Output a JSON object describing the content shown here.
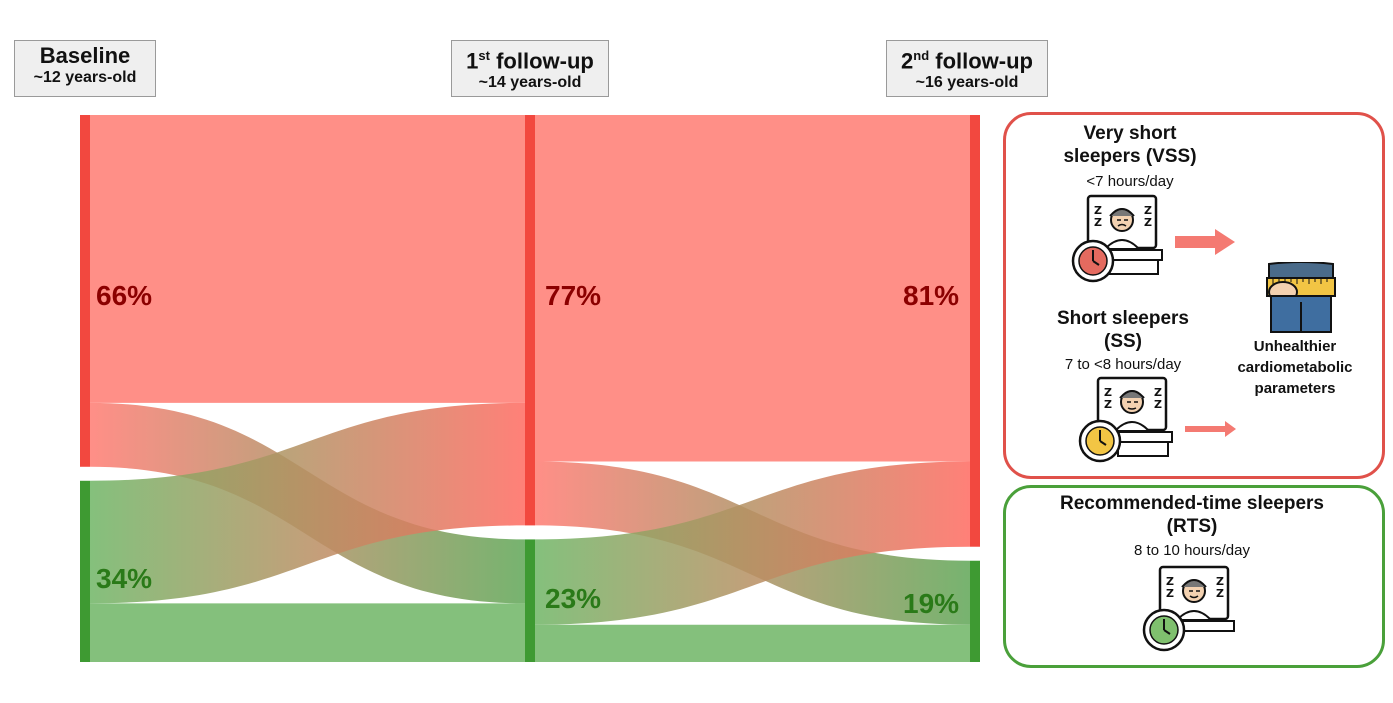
{
  "stages": [
    {
      "title_main": "Baseline",
      "title_sup": "",
      "title_rest": "",
      "age": "~12 years-old"
    },
    {
      "title_main": "1",
      "title_sup": "st",
      "title_rest": " follow-up",
      "age": "~14 years-old"
    },
    {
      "title_main": "2",
      "title_sup": "nd",
      "title_rest": " follow-up",
      "age": "~16 years-old"
    }
  ],
  "percentages": {
    "baseline_short": "66%",
    "baseline_recommended": "34%",
    "followup1_short": "77%",
    "followup1_recommended": "23%",
    "followup2_short": "81%",
    "followup2_recommended": "19%"
  },
  "chart_data": {
    "type": "sankey",
    "nodes": [
      {
        "stage": 0,
        "group": "short",
        "value": 66
      },
      {
        "stage": 0,
        "group": "recommended",
        "value": 34
      },
      {
        "stage": 1,
        "group": "short",
        "value": 77
      },
      {
        "stage": 1,
        "group": "recommended",
        "value": 23
      },
      {
        "stage": 2,
        "group": "short",
        "value": 81
      },
      {
        "stage": 2,
        "group": "recommended",
        "value": 19
      }
    ],
    "links": [
      {
        "from": "0-short",
        "to": "1-short",
        "value": 54
      },
      {
        "from": "0-short",
        "to": "1-recommended",
        "value": 12
      },
      {
        "from": "0-recommended",
        "to": "1-short",
        "value": 23
      },
      {
        "from": "0-recommended",
        "to": "1-recommended",
        "value": 11
      },
      {
        "from": "1-short",
        "to": "2-short",
        "value": 65
      },
      {
        "from": "1-short",
        "to": "2-recommended",
        "value": 12
      },
      {
        "from": "1-recommended",
        "to": "2-short",
        "value": 16
      },
      {
        "from": "1-recommended",
        "to": "2-recommended",
        "value": 7
      }
    ],
    "colors": {
      "short": "#ff7b72",
      "short_bar": "#f2483f",
      "recommended": "#6fb565",
      "recommended_bar": "#3e9a32",
      "mixed": "#b88a64"
    }
  },
  "legend": {
    "short_panel": {
      "vss_title": "Very short sleepers (VSS)",
      "vss_title_line1": "Very short",
      "vss_title_line2": "sleepers (VSS)",
      "vss_hours": "<7 hours/day",
      "ss_title_line1": "Short sleepers",
      "ss_title_line2": "(SS)",
      "ss_hours": "7 to <8 hours/day",
      "outcome_line1": "Unhealthier",
      "outcome_line2": "cardiometabolic",
      "outcome_line3": "parameters"
    },
    "recommended_panel": {
      "title_line1": "Recommended-time sleepers",
      "title_line2": "(RTS)",
      "hours": "8 to 10 hours/day"
    },
    "colors": {
      "red_border": "#e0514a",
      "green_border": "#4aa03a",
      "arrow": "#f47a72"
    }
  },
  "icons": [
    "sleeping-person-icon",
    "red-clock-icon",
    "yellow-clock-icon",
    "green-clock-icon",
    "waist-measure-icon",
    "arrow-right-icon"
  ]
}
